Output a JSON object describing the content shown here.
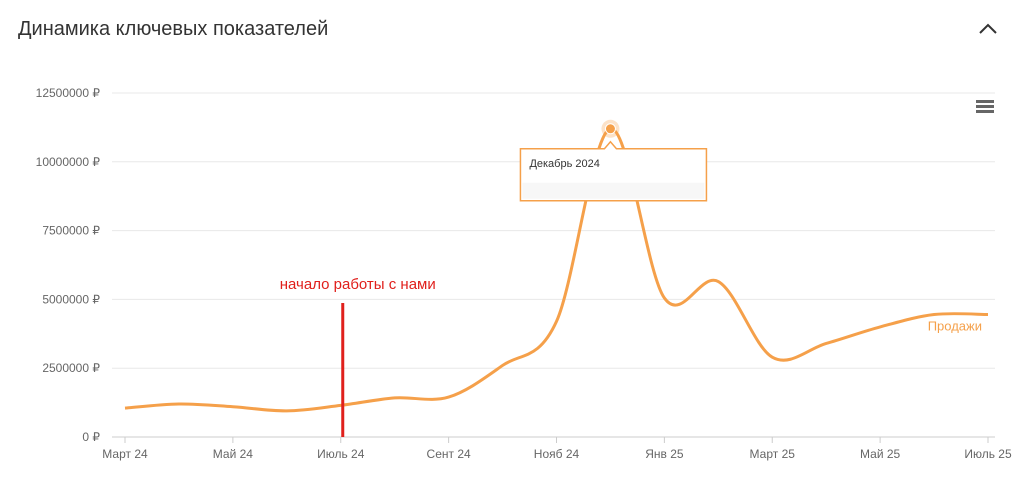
{
  "chart_data": {
    "type": "line",
    "title": "Динамика ключевых показателей",
    "categories": [
      "Март 24",
      null,
      "Май 24",
      null,
      "Июль 24",
      null,
      "Сент 24",
      null,
      "Нояб 24",
      null,
      "Янв 25",
      null,
      "Март 25",
      null,
      "Май 25",
      null,
      "Июль 25"
    ],
    "series": [
      {
        "name": "Продажи",
        "color": "#f5a04a",
        "values": [
          1050000,
          1200000,
          1100000,
          950000,
          1150000,
          1420000,
          1450000,
          2600000,
          4200000,
          11200000,
          5050000,
          5650000,
          2900000,
          3400000,
          4000000,
          4450000,
          4450000
        ]
      }
    ],
    "ylim": [
      0,
      12500000
    ],
    "yticks": [
      {
        "value": 0,
        "label": "0 ₽"
      },
      {
        "value": 2500000,
        "label": "2500000 ₽"
      },
      {
        "value": 5000000,
        "label": "5000000 ₽"
      },
      {
        "value": 7500000,
        "label": "7500000 ₽"
      },
      {
        "value": 10000000,
        "label": "10000000 ₽"
      },
      {
        "value": 12500000,
        "label": "12500000 ₽"
      }
    ],
    "grid": true,
    "annotation": {
      "text": "начало работы с нами",
      "x": "Июль 24",
      "color": "#e0201c"
    },
    "tooltip": {
      "text": "Декабрь 2024"
    }
  }
}
